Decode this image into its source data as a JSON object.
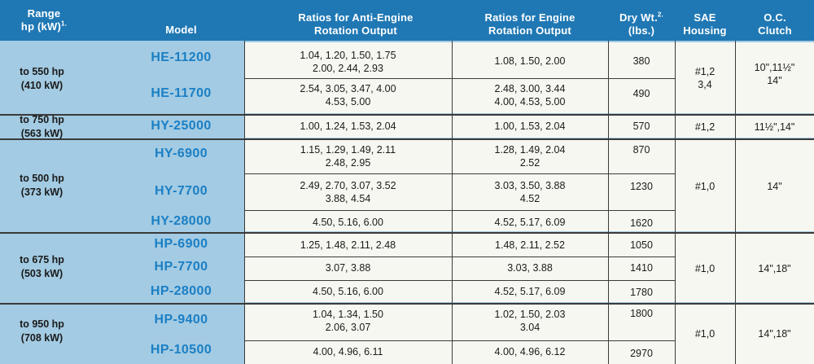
{
  "header": {
    "range": "Range",
    "range_unit": "hp (kW)",
    "range_sup": "1.",
    "model": "Model",
    "anti_line1": "Ratios for Anti-Engine",
    "anti_line2": "Rotation Output",
    "eng_line1": "Ratios for Engine",
    "eng_line2": "Rotation Output",
    "dry_line1": "Dry Wt.",
    "dry_sup": "2.",
    "dry_line2": "(lbs.)",
    "sae_line1": "SAE",
    "sae_line2": "Housing",
    "oc_line1": "O.C.",
    "oc_line2": "Clutch"
  },
  "groups": [
    {
      "range_hp": "to 550 hp",
      "range_kw": "(410 kW)",
      "sae": [
        "#1,2",
        "3,4"
      ],
      "clutch": [
        "10\",11½\"",
        "14\""
      ]
    },
    {
      "range_hp": "to 750 hp",
      "range_kw": "(563 kW)",
      "sae": [
        "#1,2"
      ],
      "clutch": [
        "11½\",14\""
      ]
    },
    {
      "range_hp": "to 500 hp",
      "range_kw": "(373 kW)",
      "sae": [
        "#1,0"
      ],
      "clutch": [
        "14\""
      ]
    },
    {
      "range_hp": "to 675 hp",
      "range_kw": "(503 kW)",
      "sae": [
        "#1,0"
      ],
      "clutch": [
        "14\",18\""
      ]
    },
    {
      "range_hp": "to 950 hp",
      "range_kw": "(708 kW)",
      "sae": [
        "#1,0"
      ],
      "clutch": [
        "14\",18\""
      ]
    }
  ],
  "rows": [
    {
      "model": "HE-11200",
      "anti": [
        "1.04, 1.20, 1.50, 1.75",
        "2.00, 2.44, 2.93"
      ],
      "engine": [
        "1.08, 1.50, 2.00"
      ],
      "weight": "380"
    },
    {
      "model": "HE-11700",
      "anti": [
        "2.54, 3.05, 3.47, 4.00",
        "4.53, 5.00"
      ],
      "engine": [
        "2.48, 3.00, 3.44",
        "4.00, 4.53, 5.00"
      ],
      "weight": "490"
    },
    {
      "model": "HY-25000",
      "anti": [
        "1.00, 1.24, 1.53, 2.04"
      ],
      "engine": [
        "1.00, 1.53, 2.04"
      ],
      "weight": "570"
    },
    {
      "model": "HY-6900",
      "anti": [
        "1.15, 1.29, 1.49, 2.11",
        "2.48, 2.95"
      ],
      "engine": [
        "1.28, 1.49, 2.04",
        "2.52"
      ],
      "weight": "870"
    },
    {
      "model": "HY-7700",
      "anti": [
        "2.49, 2.70, 3.07, 3.52",
        "3.88, 4.54"
      ],
      "engine": [
        "3.03, 3.50, 3.88",
        "4.52"
      ],
      "weight": "1230"
    },
    {
      "model": "HY-28000",
      "anti": [
        "4.50, 5.16, 6.00"
      ],
      "engine": [
        "4.52, 5.17, 6.09"
      ],
      "weight": "1620"
    },
    {
      "model": "HP-6900",
      "anti": [
        "1.25, 1.48, 2.11, 2.48"
      ],
      "engine": [
        "1.48, 2.11, 2.52"
      ],
      "weight": "1050"
    },
    {
      "model": "HP-7700",
      "anti": [
        "3.07, 3.88"
      ],
      "engine": [
        "3.03, 3.88"
      ],
      "weight": "1410"
    },
    {
      "model": "HP-28000",
      "anti": [
        "4.50, 5.16, 6.00"
      ],
      "engine": [
        "4.52, 5.17, 6.09"
      ],
      "weight": "1780"
    },
    {
      "model": "HP-9400",
      "anti": [
        "1.04, 1.34, 1.50",
        "2.06, 3.07"
      ],
      "engine": [
        "1.02, 1.50, 2.03",
        "3.04"
      ],
      "weight": "1800"
    },
    {
      "model": "HP-10500",
      "anti": [
        "4.00, 4.96, 6.11"
      ],
      "engine": [
        "4.00, 4.96, 6.12"
      ],
      "weight": "2970"
    }
  ],
  "colors": {
    "header_bg": "#1f78b4",
    "model_text": "#1b7fc4",
    "band_bg": "#a3cbe3",
    "panel_bg": "#f7f7f1"
  }
}
